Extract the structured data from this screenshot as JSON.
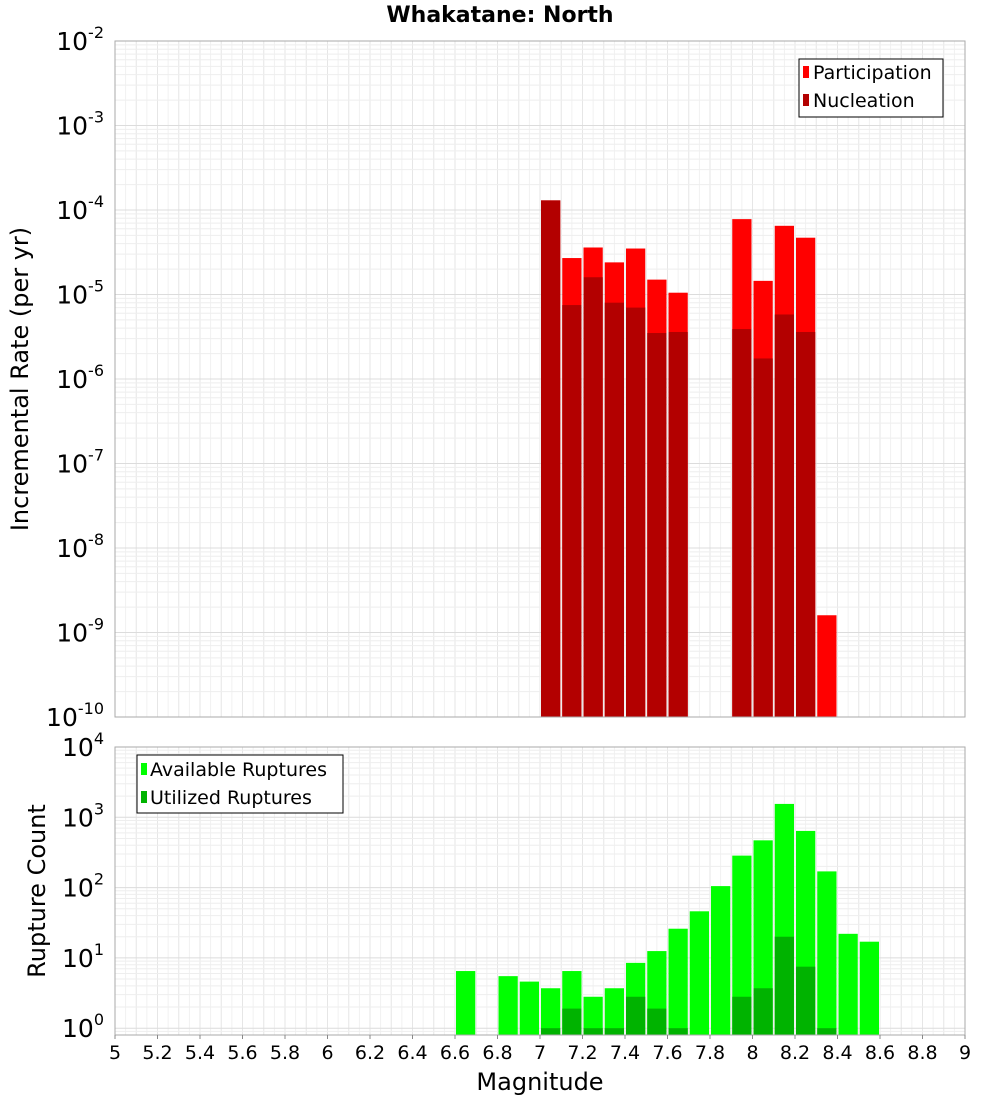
{
  "chart_data": [
    {
      "type": "bar",
      "title": "Whakatane: North",
      "ylabel": "Incremental Rate (per yr)",
      "yscale": "log",
      "ylim": [
        1e-10,
        0.01
      ],
      "xlim": [
        5,
        9
      ],
      "bar_width": 0.1,
      "grid": true,
      "legend_position": "top-right",
      "series": [
        {
          "name": "Participation",
          "color": "#ff0000",
          "x": [
            7.05,
            7.15,
            7.25,
            7.35,
            7.45,
            7.55,
            7.65,
            7.95,
            8.05,
            8.15,
            8.25,
            8.35
          ],
          "values": [
            0.00013,
            2.7e-05,
            3.6e-05,
            2.4e-05,
            3.5e-05,
            1.5e-05,
            1.05e-05,
            7.8e-05,
            1.45e-05,
            6.5e-05,
            4.7e-05,
            1.6e-09
          ]
        },
        {
          "name": "Nucleation",
          "color": "#b30000",
          "x": [
            7.05,
            7.15,
            7.25,
            7.35,
            7.45,
            7.55,
            7.65,
            7.95,
            8.05,
            8.15,
            8.25
          ],
          "values": [
            0.00013,
            7.5e-06,
            1.6e-05,
            8e-06,
            7e-06,
            3.5e-06,
            3.6e-06,
            3.9e-06,
            1.75e-06,
            5.8e-06,
            3.6e-06
          ]
        }
      ]
    },
    {
      "type": "bar",
      "xlabel": "Magnitude",
      "ylabel": "Rupture Count",
      "yscale": "log",
      "ylim": [
        0.8,
        10000
      ],
      "xlim": [
        5,
        9
      ],
      "bar_width": 0.1,
      "grid": true,
      "legend_position": "top-left",
      "x_ticks": [
        "5",
        "5.2",
        "5.4",
        "5.6",
        "5.8",
        "6",
        "6.2",
        "6.4",
        "6.6",
        "6.8",
        "7",
        "7.2",
        "7.4",
        "7.6",
        "7.8",
        "8",
        "8.2",
        "8.4",
        "8.6",
        "8.8",
        "9"
      ],
      "series": [
        {
          "name": "Available Ruptures",
          "color": "#00ff00",
          "x": [
            6.65,
            6.85,
            6.95,
            7.05,
            7.15,
            7.25,
            7.35,
            7.45,
            7.55,
            7.65,
            7.75,
            7.85,
            7.95,
            8.05,
            8.15,
            8.25,
            8.35,
            8.45,
            8.55
          ],
          "values": [
            6.5,
            5.5,
            4.6,
            3.7,
            6.5,
            2.8,
            3.7,
            8.5,
            12.5,
            26,
            46,
            105,
            285,
            470,
            1550,
            640,
            170,
            22,
            17
          ]
        },
        {
          "name": "Utilized Ruptures",
          "color": "#00b300",
          "x": [
            7.05,
            7.15,
            7.25,
            7.35,
            7.45,
            7.55,
            7.65,
            7.95,
            8.05,
            8.15,
            8.25,
            8.35
          ],
          "values": [
            1,
            1.9,
            1,
            1,
            2.8,
            1.9,
            1,
            2.8,
            3.7,
            20,
            7.5,
            1
          ]
        }
      ]
    }
  ]
}
